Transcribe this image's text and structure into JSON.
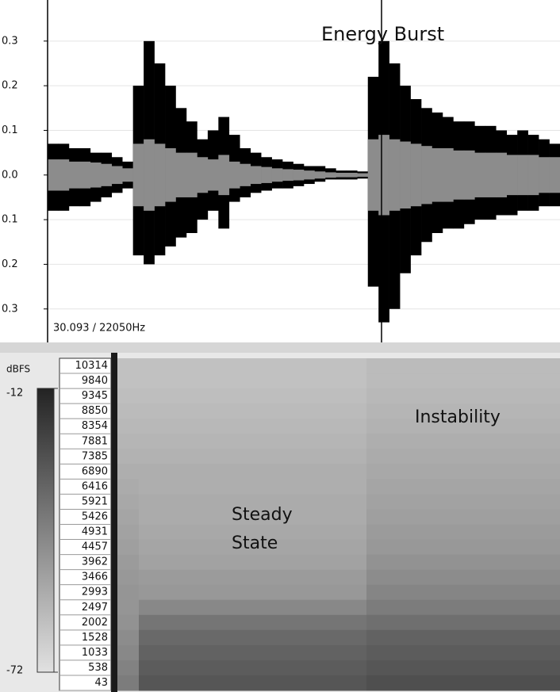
{
  "chart_data": [
    {
      "type": "waveform",
      "annotations": [
        "Energy Burst"
      ],
      "status": "30.093 / 22050Hz",
      "ylim": [
        -0.375,
        0.392
      ],
      "yticks": [
        0.3,
        0.2,
        0.1,
        {
          "value": 0,
          "label": "0.0"
        },
        {
          "value": -0.1,
          "label": "0.1"
        },
        {
          "value": -0.2,
          "label": "0.2"
        },
        {
          "value": -0.3,
          "label": "0.3"
        }
      ],
      "grid": true,
      "color": "#000000",
      "rms_color": "#8c8c8c",
      "upper": [
        0.07,
        0.07,
        0.06,
        0.06,
        0.05,
        0.05,
        0.04,
        0.03,
        0.2,
        0.3,
        0.25,
        0.2,
        0.15,
        0.12,
        0.08,
        0.1,
        0.13,
        0.09,
        0.06,
        0.05,
        0.04,
        0.035,
        0.03,
        0.025,
        0.02,
        0.02,
        0.015,
        0.01,
        0.01,
        0.008,
        0.22,
        0.3,
        0.25,
        0.2,
        0.17,
        0.15,
        0.14,
        0.13,
        0.12,
        0.12,
        0.11,
        0.11,
        0.1,
        0.09,
        0.1,
        0.09,
        0.08,
        0.07
      ],
      "lower": [
        -0.08,
        -0.08,
        -0.07,
        -0.07,
        -0.06,
        -0.05,
        -0.04,
        -0.03,
        -0.18,
        -0.2,
        -0.18,
        -0.16,
        -0.14,
        -0.13,
        -0.1,
        -0.08,
        -0.12,
        -0.06,
        -0.05,
        -0.04,
        -0.035,
        -0.03,
        -0.03,
        -0.025,
        -0.02,
        -0.015,
        -0.01,
        -0.01,
        -0.01,
        -0.008,
        -0.25,
        -0.33,
        -0.3,
        -0.22,
        -0.18,
        -0.15,
        -0.13,
        -0.12,
        -0.12,
        -0.11,
        -0.1,
        -0.1,
        -0.09,
        -0.09,
        -0.08,
        -0.08,
        -0.07,
        -0.07
      ],
      "rms": [
        0.035,
        0.035,
        0.03,
        0.03,
        0.028,
        0.025,
        0.02,
        0.015,
        0.07,
        0.08,
        0.07,
        0.06,
        0.05,
        0.05,
        0.04,
        0.035,
        0.045,
        0.03,
        0.025,
        0.02,
        0.018,
        0.015,
        0.013,
        0.012,
        0.01,
        0.008,
        0.006,
        0.005,
        0.005,
        0.004,
        0.08,
        0.09,
        0.08,
        0.075,
        0.07,
        0.065,
        0.06,
        0.06,
        0.055,
        0.055,
        0.05,
        0.05,
        0.05,
        0.045,
        0.045,
        0.045,
        0.04,
        0.04
      ]
    },
    {
      "type": "spectrogram",
      "annotations": [
        {
          "lines": [
            "Instability"
          ]
        },
        {
          "lines": [
            "Steady",
            "State"
          ]
        }
      ],
      "colorbar": {
        "label": "dBFS",
        "lim": [
          -72,
          -12
        ],
        "ticks": [
          -12,
          -72
        ]
      },
      "frequencies": [
        10314,
        9840,
        9345,
        8850,
        8354,
        7881,
        7385,
        6890,
        6416,
        5921,
        5426,
        4931,
        4457,
        3962,
        3466,
        2993,
        2497,
        2002,
        1528,
        1033,
        538,
        43
      ],
      "levels": [
        [
          -62,
          -62,
          -60
        ],
        [
          -62,
          -62,
          -60
        ],
        [
          -61,
          -61,
          -59
        ],
        [
          -60,
          -60,
          -58
        ],
        [
          -59,
          -59,
          -57
        ],
        [
          -58,
          -58,
          -56
        ],
        [
          -57,
          -57,
          -55
        ],
        [
          -56,
          -56,
          -54
        ],
        [
          -55,
          -56,
          -53
        ],
        [
          -54,
          -55,
          -52
        ],
        [
          -53,
          -55,
          -51
        ],
        [
          -52,
          -54,
          -50
        ],
        [
          -51,
          -53,
          -49
        ],
        [
          -50,
          -52,
          -47
        ],
        [
          -49,
          -50,
          -45
        ],
        [
          -48,
          -49,
          -43
        ],
        [
          -48,
          -44,
          -40
        ],
        [
          -47,
          -38,
          -36
        ],
        [
          -45,
          -34,
          -32
        ],
        [
          -44,
          -32,
          -30
        ],
        [
          -42,
          -30,
          -28
        ],
        [
          -40,
          -28,
          -26
        ]
      ]
    }
  ]
}
